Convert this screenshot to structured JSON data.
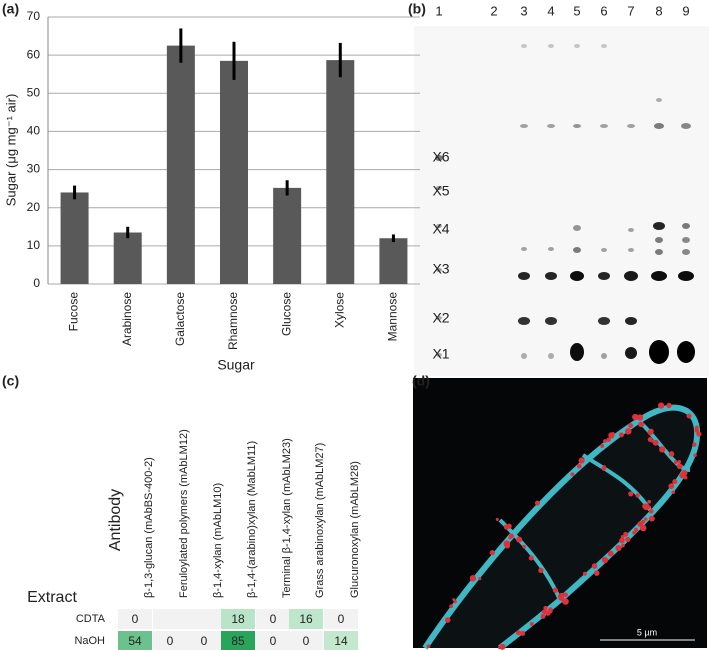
{
  "panel_labels": [
    "(a)",
    "(b)",
    "(c)",
    "(d)"
  ],
  "chart_data": {
    "type": "bar",
    "xlabel": "Sugar",
    "ylabel": "Sugar (μg mg⁻¹ air)",
    "categories": [
      "Fucose",
      "Arabinose",
      "Galactose",
      "Rhamnose",
      "Glucose",
      "Xylose",
      "Mannose"
    ],
    "values": [
      24,
      13.5,
      62.5,
      58.5,
      25.2,
      58.7,
      12
    ],
    "errors": [
      1.8,
      1.5,
      4.5,
      5,
      2,
      4.5,
      1
    ],
    "color": "#595959",
    "ylim": [
      0,
      70
    ],
    "yticks": [
      0,
      10,
      20,
      30,
      40,
      50,
      60,
      70
    ],
    "grid": true
  },
  "gel": {
    "lanes": [
      "1",
      "2",
      "3",
      "4",
      "5",
      "6",
      "7",
      "8",
      "9"
    ],
    "markers": [
      "X6",
      "X5",
      "X4",
      "X3",
      "X2",
      "X1"
    ]
  },
  "heatmap": {
    "column_title": "Antibody",
    "row_title": "Extract",
    "columns": [
      "β-1,3-glucan (mAbBS-400-2)",
      "Feruloylated polymers (mAbLM12)",
      "β-1,4-xylan (mAbLM10)",
      "β-1,4-(arabino)xylan (MabLM11)",
      "Terminal β-1,4-xylan (mAbLM23)",
      "Grass arabinoxylan (mAbLM27)",
      "Glucuronoxylan (mAbLM28)"
    ],
    "rows": [
      {
        "name": "CDTA",
        "values": [
          0,
          null,
          null,
          18,
          0,
          16,
          0
        ]
      },
      {
        "name": "NaOH",
        "values": [
          54,
          0,
          0,
          85,
          0,
          0,
          14
        ]
      }
    ]
  },
  "micrograph": {
    "scale_bar": "5 µm"
  }
}
